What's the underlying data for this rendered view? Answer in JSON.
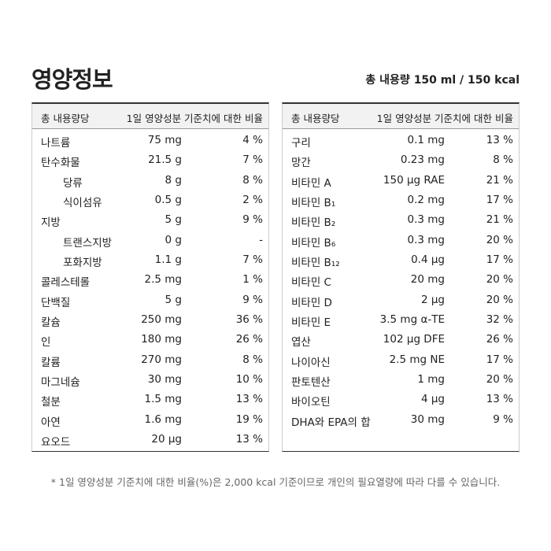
{
  "header": {
    "title": "영양정보",
    "serving": "총 내용량 150 ml /  150 kcal"
  },
  "tables": [
    {
      "columns": [
        "총 내용량당",
        "1일 영양성분 기준치에 대한 비율"
      ],
      "rows": [
        {
          "name": "나트륨",
          "amount": "75 mg",
          "percent": "4 %"
        },
        {
          "name": "탄수화물",
          "amount": "21.5 g",
          "percent": "7 %"
        },
        {
          "name": "당류",
          "amount": "8 g",
          "percent": "8 %",
          "indent": true
        },
        {
          "name": "식이섬유",
          "amount": "0.5 g",
          "percent": "2 %",
          "indent": true
        },
        {
          "name": "지방",
          "amount": "5 g",
          "percent": "9 %"
        },
        {
          "name": "트랜스지방",
          "amount": "0 g",
          "percent": "-",
          "indent": true
        },
        {
          "name": "포화지방",
          "amount": "1.1 g",
          "percent": "7 %",
          "indent": true
        },
        {
          "name": "콜레스테롤",
          "amount": "2.5 mg",
          "percent": "1 %"
        },
        {
          "name": "단백질",
          "amount": "5 g",
          "percent": "9 %"
        },
        {
          "name": "칼슘",
          "amount": "250 mg",
          "percent": "36 %"
        },
        {
          "name": "인",
          "amount": "180 mg",
          "percent": "26 %"
        },
        {
          "name": "칼륨",
          "amount": "270 mg",
          "percent": "8 %"
        },
        {
          "name": "마그네슘",
          "amount": "30 mg",
          "percent": "10 %"
        },
        {
          "name": "철분",
          "amount": "1.5 mg",
          "percent": "13 %"
        },
        {
          "name": "아연",
          "amount": "1.6 mg",
          "percent": "19 %"
        },
        {
          "name": "요오드",
          "amount": "20 μg",
          "percent": "13 %"
        }
      ]
    },
    {
      "columns": [
        "총 내용량당",
        "1일 영양성분 기준치에 대한 비율"
      ],
      "rows": [
        {
          "name": "구리",
          "amount": "0.1 mg",
          "percent": "13 %"
        },
        {
          "name": "망간",
          "amount": "0.23 mg",
          "percent": "8 %"
        },
        {
          "name": "비타민 A",
          "amount": "150 μg RAE",
          "percent": "21 %"
        },
        {
          "name": "비타민 B₁",
          "amount": "0.2 mg",
          "percent": "17 %"
        },
        {
          "name": "비타민 B₂",
          "amount": "0.3 mg",
          "percent": "21 %"
        },
        {
          "name": "비타민 B₆",
          "amount": "0.3 mg",
          "percent": "20 %"
        },
        {
          "name": "비타민 B₁₂",
          "amount": "0.4 μg",
          "percent": "17 %"
        },
        {
          "name": "비타민 C",
          "amount": "20 mg",
          "percent": "20 %"
        },
        {
          "name": "비타민 D",
          "amount": "2 μg",
          "percent": "20 %"
        },
        {
          "name": "비타민 E",
          "amount": "3.5 mg α-TE",
          "percent": "32 %"
        },
        {
          "name": "엽산",
          "amount": "102 μg DFE",
          "percent": "26 %"
        },
        {
          "name": "나이아신",
          "amount": "2.5 mg NE",
          "percent": "17 %"
        },
        {
          "name": "판토텐산",
          "amount": "1 mg",
          "percent": "20 %"
        },
        {
          "name": "바이오틴",
          "amount": "4 μg",
          "percent": "13 %"
        },
        {
          "name": "DHA와 EPA의 합",
          "amount": "30 mg",
          "percent": "9 %"
        }
      ]
    }
  ],
  "footnote": "* 1일 영양성분 기준치에 대한 비율(%)은 2,000 kcal 기준이므로 개인의 필요열량에 따라 다를 수 있습니다."
}
